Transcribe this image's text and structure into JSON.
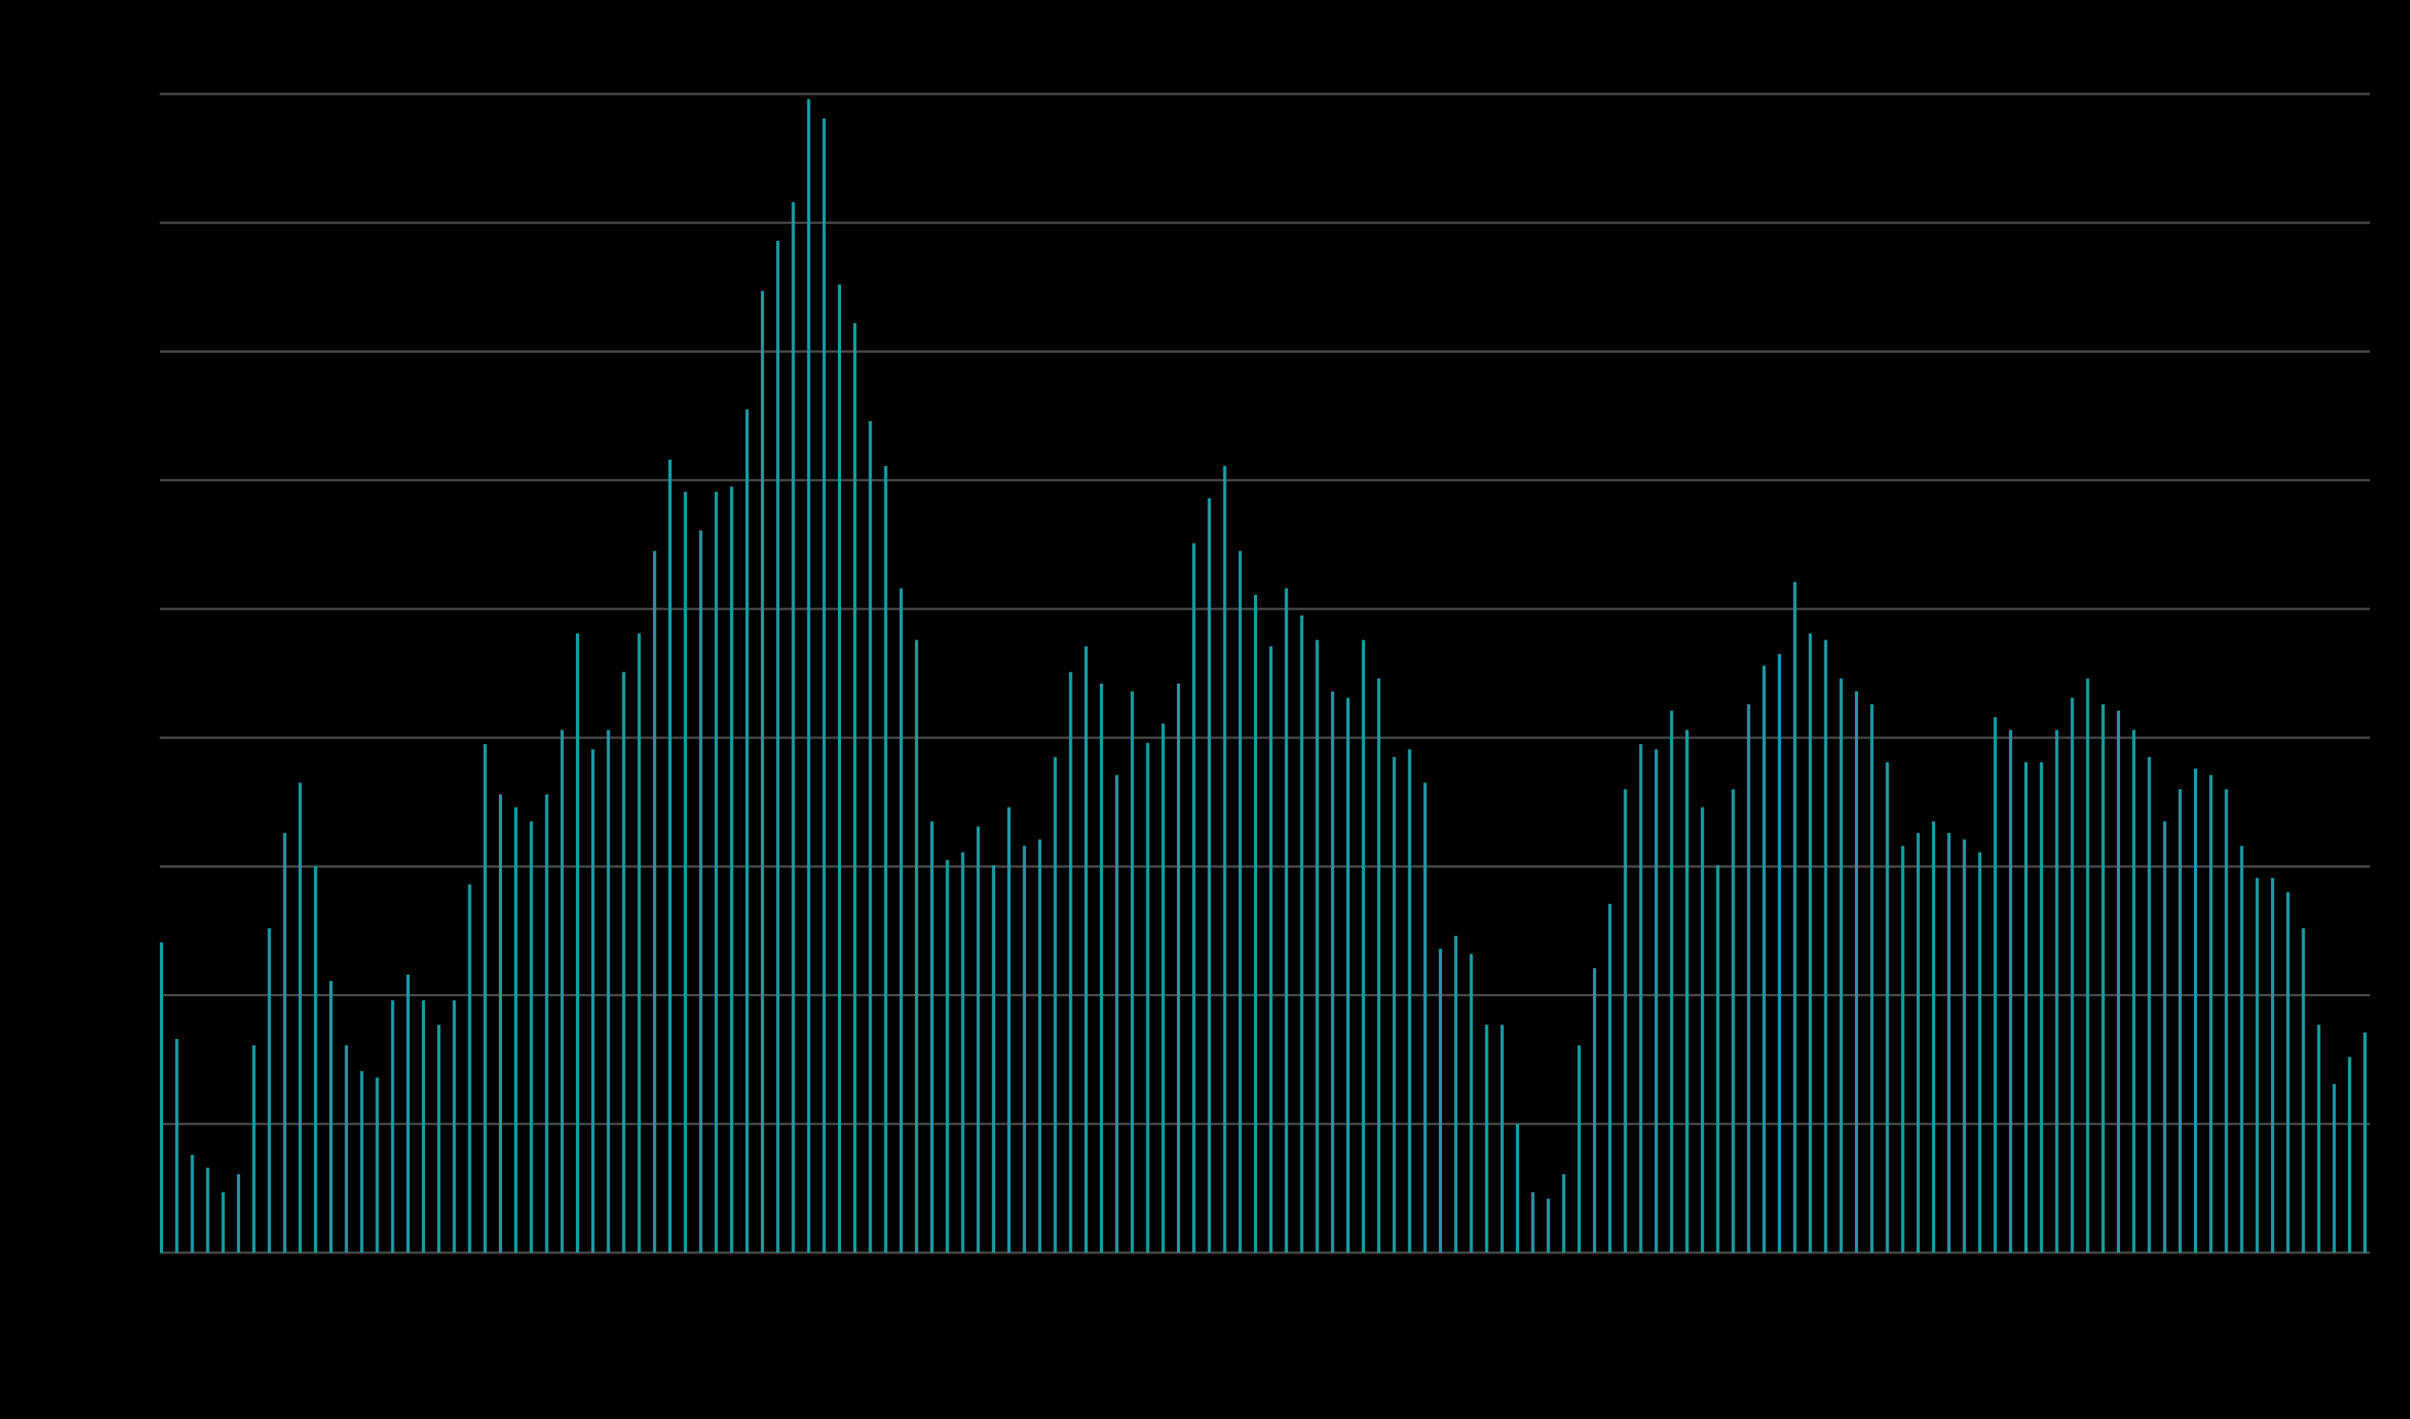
{
  "chart_data": {
    "type": "bar",
    "categories": [
      null,
      null,
      null,
      null,
      null,
      null,
      null,
      null,
      null,
      null,
      null,
      null,
      null,
      null,
      null,
      null,
      null,
      null,
      null,
      null,
      null,
      null,
      null,
      null,
      null,
      null,
      null,
      null,
      null,
      null,
      null,
      null,
      null,
      null,
      null,
      null,
      null,
      null,
      null,
      null,
      null,
      null,
      null,
      null,
      null,
      null,
      null,
      null,
      null,
      null,
      null,
      null,
      null,
      null,
      null,
      null,
      null,
      null,
      null,
      null,
      null,
      null,
      null,
      null,
      null,
      null,
      null,
      null,
      null,
      null,
      null,
      null,
      null,
      null,
      null,
      null,
      null,
      null,
      null,
      null,
      null,
      null,
      null,
      null,
      null,
      null,
      null,
      null,
      null,
      null,
      null,
      null,
      null,
      null,
      null,
      null,
      null,
      null,
      null,
      null,
      null,
      null,
      null,
      null,
      null,
      null,
      null,
      null,
      null,
      null,
      null,
      null,
      null,
      null,
      null,
      null,
      null,
      null,
      null,
      null,
      null,
      null,
      null,
      null,
      null,
      null,
      null,
      null,
      null,
      null,
      null,
      null,
      null,
      null,
      null,
      null,
      null,
      null,
      null,
      null,
      null,
      null,
      null,
      null
    ],
    "values": [
      2.41,
      1.66,
      0.76,
      0.66,
      0.47,
      0.61,
      1.61,
      2.52,
      3.26,
      3.65,
      3.0,
      2.11,
      1.61,
      1.41,
      1.36,
      1.96,
      2.16,
      1.96,
      1.77,
      1.96,
      2.86,
      3.95,
      3.56,
      3.46,
      3.35,
      3.56,
      4.06,
      4.81,
      3.91,
      4.06,
      4.51,
      4.81,
      5.45,
      6.16,
      5.91,
      5.61,
      5.91,
      5.95,
      6.55,
      7.47,
      7.86,
      8.16,
      8.96,
      8.81,
      7.52,
      7.22,
      6.46,
      6.11,
      5.16,
      4.76,
      3.35,
      3.05,
      3.11,
      3.31,
      3.01,
      3.46,
      3.16,
      3.21,
      3.85,
      4.51,
      4.71,
      4.42,
      3.71,
      4.36,
      3.96,
      4.11,
      4.42,
      5.51,
      5.86,
      6.11,
      5.45,
      5.11,
      4.71,
      5.16,
      4.95,
      4.76,
      4.36,
      4.31,
      4.76,
      4.46,
      3.85,
      3.91,
      3.65,
      2.36,
      2.46,
      2.32,
      1.77,
      1.77,
      1.0,
      0.47,
      0.42,
      0.61,
      1.61,
      2.21,
      2.71,
      3.6,
      3.95,
      3.91,
      4.21,
      4.06,
      3.46,
      3.01,
      3.6,
      4.26,
      4.56,
      4.65,
      5.21,
      4.81,
      4.76,
      4.46,
      4.36,
      4.26,
      3.81,
      3.16,
      3.26,
      3.35,
      3.26,
      3.21,
      3.11,
      4.16,
      4.06,
      3.81,
      3.81,
      4.06,
      4.31,
      4.46,
      4.26,
      4.21,
      4.06,
      3.85,
      3.35,
      3.6,
      3.76,
      3.71,
      3.6,
      3.16,
      2.91,
      2.91,
      2.8,
      2.52,
      1.77,
      1.31,
      1.52,
      1.71
    ],
    "color": "#1b9aa3",
    "ylim": [
      0,
      9
    ],
    "yticks": [
      0,
      1,
      2,
      3,
      4,
      5,
      6,
      7,
      8,
      9
    ],
    "grid": true,
    "grid_color": "#464646"
  }
}
